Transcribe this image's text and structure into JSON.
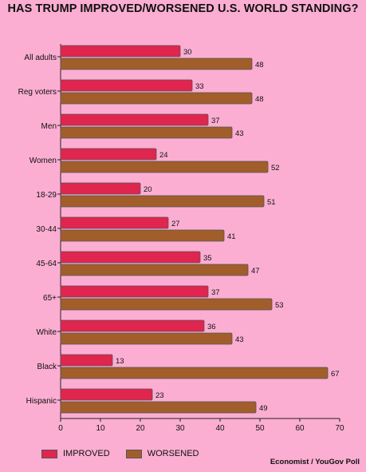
{
  "chart_data": {
    "type": "bar",
    "orientation": "horizontal",
    "title": "HAS TRUMP IMPROVED/WORSENED U.S. WORLD STANDING?",
    "categories": [
      "All adults",
      "Reg voters",
      "Men",
      "Women",
      "18-29",
      "30-44",
      "45-64",
      "65+",
      "White",
      "Black",
      "Hispanic"
    ],
    "series": [
      {
        "name": "IMPROVED",
        "color": "#e0254f",
        "values": [
          30,
          33,
          37,
          24,
          20,
          27,
          35,
          37,
          36,
          13,
          23
        ]
      },
      {
        "name": "WORSENED",
        "color": "#a15e2b",
        "values": [
          48,
          48,
          43,
          52,
          51,
          41,
          47,
          53,
          43,
          67,
          49
        ]
      }
    ],
    "xlim": [
      0,
      70
    ],
    "xticks": [
      0,
      10,
      20,
      30,
      40,
      50,
      60,
      70
    ],
    "grid": false,
    "legend_position": "bottom-left",
    "source": "Economist / YouGov Poll"
  }
}
